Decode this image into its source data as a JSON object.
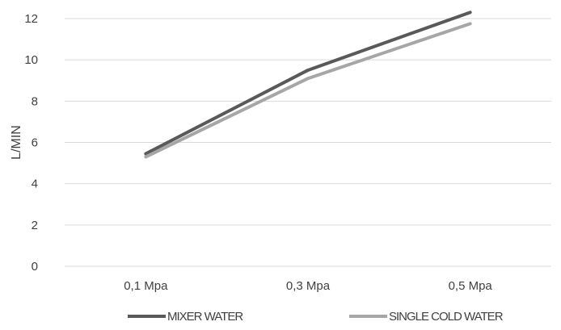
{
  "chart_data": {
    "type": "line",
    "title": "",
    "xlabel": "",
    "ylabel": "L/MIN",
    "categories": [
      "0,1 Mpa",
      "0,3 Mpa",
      "0,5 Mpa"
    ],
    "ylim": [
      0,
      12
    ],
    "yticks": [
      0,
      2,
      4,
      6,
      8,
      10,
      12
    ],
    "grid": true,
    "legend_position": "bottom",
    "series": [
      {
        "name": "MIXER WATER",
        "values": [
          5.45,
          9.5,
          12.3
        ],
        "color": "#595959"
      },
      {
        "name": "SINGLE COLD WATER",
        "values": [
          5.3,
          9.1,
          11.75
        ],
        "color": "#a6a6a6"
      }
    ]
  }
}
